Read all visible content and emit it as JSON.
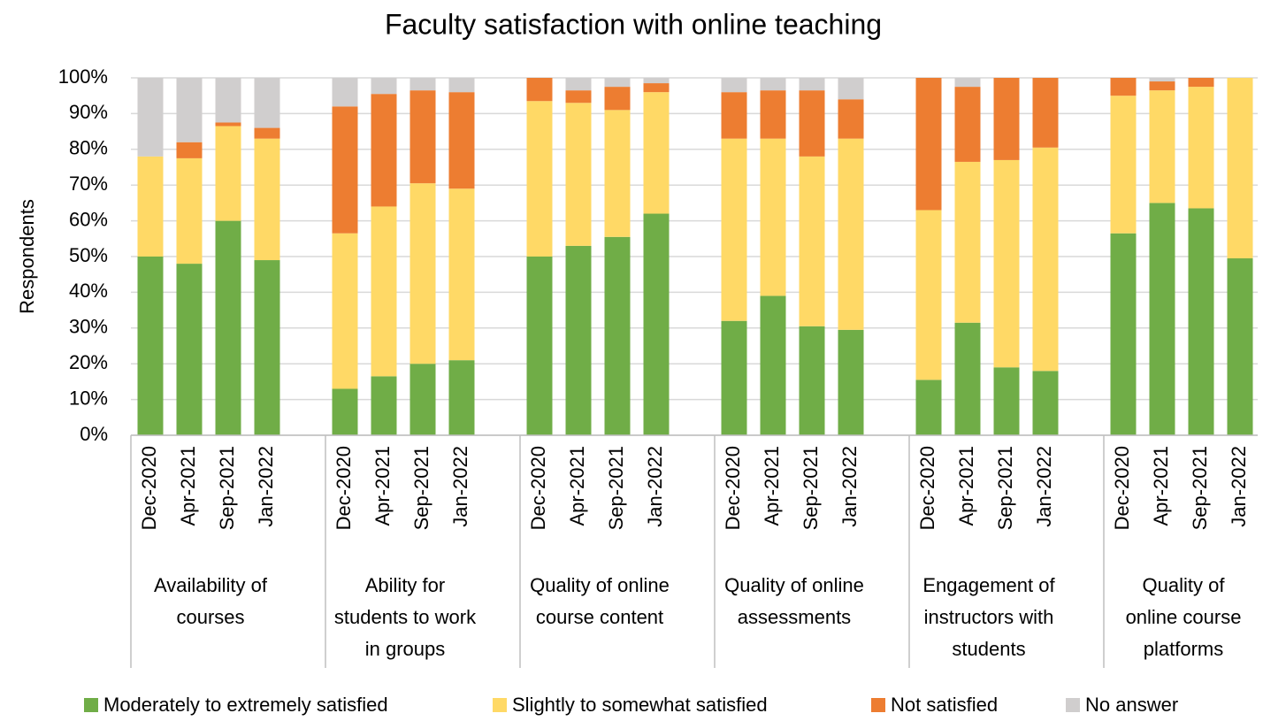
{
  "chart_data": {
    "type": "stacked_bar",
    "title": "Faculty satisfaction with online teaching",
    "y_label": "Respondents",
    "groups": [
      "Availability of\ncourses",
      "Ability for\nstudents to work\nin groups",
      "Quality of online\ncourse content",
      "Quality of online\nassessments",
      "Engagement of\ninstructors with\nstudents",
      "Quality of\nonline course\nplatforms"
    ],
    "categories": [
      "Dec-2020",
      "Apr-2021",
      "Sep-2021",
      "Jan-2022",
      "Dec-2020",
      "Apr-2021",
      "Sep-2021",
      "Jan-2022",
      "Dec-2020",
      "Apr-2021",
      "Sep-2021",
      "Jan-2022",
      "Dec-2020",
      "Apr-2021",
      "Sep-2021",
      "Jan-2022",
      "Dec-2020",
      "Apr-2021",
      "Sep-2021",
      "Jan-2022",
      "Dec-2020",
      "Apr-2021",
      "Sep-2021",
      "Jan-2022"
    ],
    "series": [
      {
        "name": "Moderately to extremely satisfied",
        "color": "#70ad47",
        "values": [
          50,
          48,
          60,
          49,
          13,
          16.5,
          20,
          21,
          50,
          53,
          55.5,
          62,
          32,
          39,
          30.5,
          29.5,
          15.5,
          31.5,
          19,
          18,
          56.5,
          65,
          63.5,
          49.5
        ]
      },
      {
        "name": "Slightly to somewhat satisfied",
        "color": "#ffd966",
        "values": [
          28,
          29.5,
          26.5,
          34,
          43.5,
          47.5,
          50.5,
          48,
          43.5,
          40,
          35.5,
          34,
          51,
          44,
          47.5,
          53.5,
          47.5,
          45,
          58,
          62.5,
          38.5,
          31.5,
          34,
          50.5
        ]
      },
      {
        "name": "Not satisfied",
        "color": "#ed7d31",
        "values": [
          0,
          4.5,
          1,
          3,
          35.5,
          31.5,
          26,
          27,
          6.5,
          3.5,
          6.5,
          2.5,
          13,
          13.5,
          18.5,
          11,
          37,
          21,
          23,
          19.5,
          5,
          2.5,
          2.5,
          0
        ]
      },
      {
        "name": "No answer",
        "color": "#d0cece",
        "values": [
          22,
          18,
          12.5,
          14,
          8,
          4.5,
          3.5,
          4,
          0,
          3.5,
          2.5,
          1.5,
          4,
          3.5,
          3.5,
          6,
          0,
          2.5,
          0,
          0,
          0,
          1,
          0,
          0
        ]
      }
    ],
    "ylim": [
      0,
      100
    ],
    "yticks": [
      {
        "value": 0,
        "label": "0%"
      },
      {
        "value": 10,
        "label": "10%"
      },
      {
        "value": 20,
        "label": "20%"
      },
      {
        "value": 30,
        "label": "30%"
      },
      {
        "value": 40,
        "label": "40%"
      },
      {
        "value": 50,
        "label": "50%"
      },
      {
        "value": 60,
        "label": "60%"
      },
      {
        "value": 70,
        "label": "70%"
      },
      {
        "value": 80,
        "label": "80%"
      },
      {
        "value": 90,
        "label": "90%"
      },
      {
        "value": 100,
        "label": "100%"
      }
    ],
    "grid": true,
    "legend": "bottom"
  }
}
